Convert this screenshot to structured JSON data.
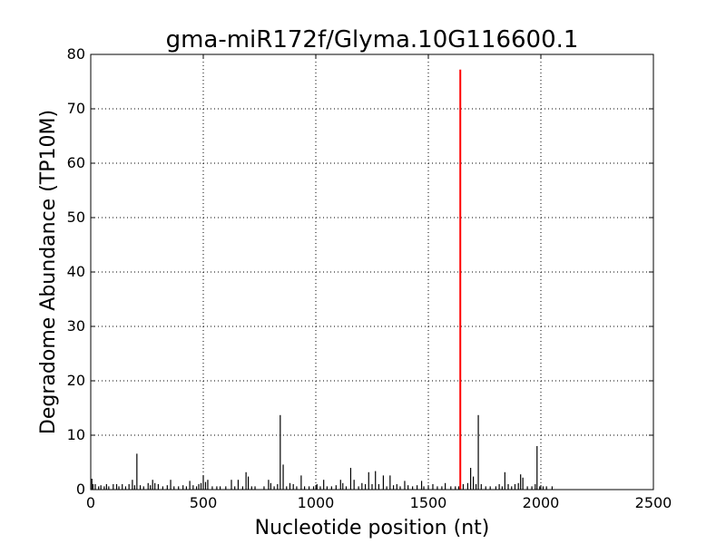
{
  "chart_data": {
    "type": "bar",
    "title": "gma-miR172f/Glyma.10G116600.1",
    "xlabel": "Nucleotide position (nt)",
    "ylabel": "Degradome Abundance (TP10M)",
    "xlim": [
      0,
      2500
    ],
    "ylim": [
      0,
      80
    ],
    "xticks": [
      0,
      500,
      1000,
      1500,
      2000,
      2500
    ],
    "yticks": [
      0,
      10,
      20,
      30,
      40,
      50,
      60,
      70,
      80
    ],
    "grid": true,
    "colors": {
      "background_series": "#000000",
      "target_series": "#ff0000"
    },
    "series": [
      {
        "points": [
          [
            5,
            2
          ],
          [
            10,
            1
          ],
          [
            20,
            1
          ],
          [
            35,
            0.6
          ],
          [
            45,
            0.8
          ],
          [
            60,
            0.6
          ],
          [
            70,
            1
          ],
          [
            80,
            0.6
          ],
          [
            100,
            1
          ],
          [
            115,
            1
          ],
          [
            125,
            0.6
          ],
          [
            140,
            1
          ],
          [
            155,
            0.6
          ],
          [
            170,
            1
          ],
          [
            185,
            1.8
          ],
          [
            195,
            0.8
          ],
          [
            205,
            6.6
          ],
          [
            220,
            0.8
          ],
          [
            235,
            0.6
          ],
          [
            255,
            1.2
          ],
          [
            265,
            0.8
          ],
          [
            275,
            1.8
          ],
          [
            285,
            1.2
          ],
          [
            300,
            1
          ],
          [
            320,
            0.6
          ],
          [
            340,
            0.8
          ],
          [
            355,
            1.8
          ],
          [
            370,
            0.6
          ],
          [
            390,
            0.6
          ],
          [
            410,
            0.8
          ],
          [
            425,
            0.6
          ],
          [
            440,
            1.6
          ],
          [
            455,
            0.8
          ],
          [
            470,
            0.6
          ],
          [
            480,
            1
          ],
          [
            490,
            1.2
          ],
          [
            500,
            2.6
          ],
          [
            510,
            1.4
          ],
          [
            520,
            1.8
          ],
          [
            540,
            0.6
          ],
          [
            560,
            0.6
          ],
          [
            575,
            0.6
          ],
          [
            600,
            0.6
          ],
          [
            625,
            1.8
          ],
          [
            640,
            0.6
          ],
          [
            655,
            1.8
          ],
          [
            675,
            0.6
          ],
          [
            690,
            3.2
          ],
          [
            700,
            2.4
          ],
          [
            715,
            0.6
          ],
          [
            730,
            0.6
          ],
          [
            770,
            0.6
          ],
          [
            790,
            1.8
          ],
          [
            800,
            1.2
          ],
          [
            815,
            0.6
          ],
          [
            830,
            1
          ],
          [
            842,
            13.7
          ],
          [
            855,
            4.6
          ],
          [
            870,
            0.6
          ],
          [
            885,
            1.2
          ],
          [
            900,
            1
          ],
          [
            915,
            0.6
          ],
          [
            935,
            2.6
          ],
          [
            950,
            0.6
          ],
          [
            970,
            0.6
          ],
          [
            990,
            0.6
          ],
          [
            1005,
            1
          ],
          [
            1020,
            0.6
          ],
          [
            1035,
            1.8
          ],
          [
            1050,
            0.6
          ],
          [
            1070,
            0.6
          ],
          [
            1090,
            0.8
          ],
          [
            1110,
            1.8
          ],
          [
            1120,
            1.2
          ],
          [
            1135,
            0.6
          ],
          [
            1155,
            4
          ],
          [
            1170,
            1.8
          ],
          [
            1190,
            0.6
          ],
          [
            1205,
            1.2
          ],
          [
            1220,
            1
          ],
          [
            1235,
            3.2
          ],
          [
            1250,
            1
          ],
          [
            1265,
            3.4
          ],
          [
            1280,
            1
          ],
          [
            1300,
            2.6
          ],
          [
            1315,
            0.6
          ],
          [
            1330,
            2.6
          ],
          [
            1345,
            0.8
          ],
          [
            1360,
            1
          ],
          [
            1375,
            0.6
          ],
          [
            1395,
            1.6
          ],
          [
            1410,
            0.8
          ],
          [
            1430,
            0.6
          ],
          [
            1450,
            0.8
          ],
          [
            1470,
            1.6
          ],
          [
            1480,
            0.6
          ],
          [
            1500,
            0.6
          ],
          [
            1520,
            1
          ],
          [
            1540,
            0.6
          ],
          [
            1560,
            0.6
          ],
          [
            1575,
            1.2
          ],
          [
            1600,
            0.6
          ],
          [
            1620,
            0.6
          ],
          [
            1635,
            0.6
          ],
          [
            1655,
            1
          ],
          [
            1675,
            1.2
          ],
          [
            1688,
            4
          ],
          [
            1700,
            2.4
          ],
          [
            1712,
            1
          ],
          [
            1722,
            13.7
          ],
          [
            1735,
            1
          ],
          [
            1755,
            0.6
          ],
          [
            1775,
            0.6
          ],
          [
            1800,
            0.6
          ],
          [
            1815,
            1
          ],
          [
            1828,
            0.6
          ],
          [
            1840,
            3.2
          ],
          [
            1855,
            1
          ],
          [
            1870,
            0.6
          ],
          [
            1885,
            1
          ],
          [
            1900,
            1.2
          ],
          [
            1910,
            2.8
          ],
          [
            1920,
            2.2
          ],
          [
            1940,
            0.6
          ],
          [
            1960,
            0.6
          ],
          [
            1975,
            1
          ],
          [
            1983,
            8
          ],
          [
            1995,
            0.6
          ],
          [
            2010,
            0.6
          ],
          [
            2025,
            0.6
          ],
          [
            2050,
            0.6
          ]
        ]
      },
      {
        "points": [
          [
            1642,
            77.2
          ]
        ]
      }
    ]
  }
}
